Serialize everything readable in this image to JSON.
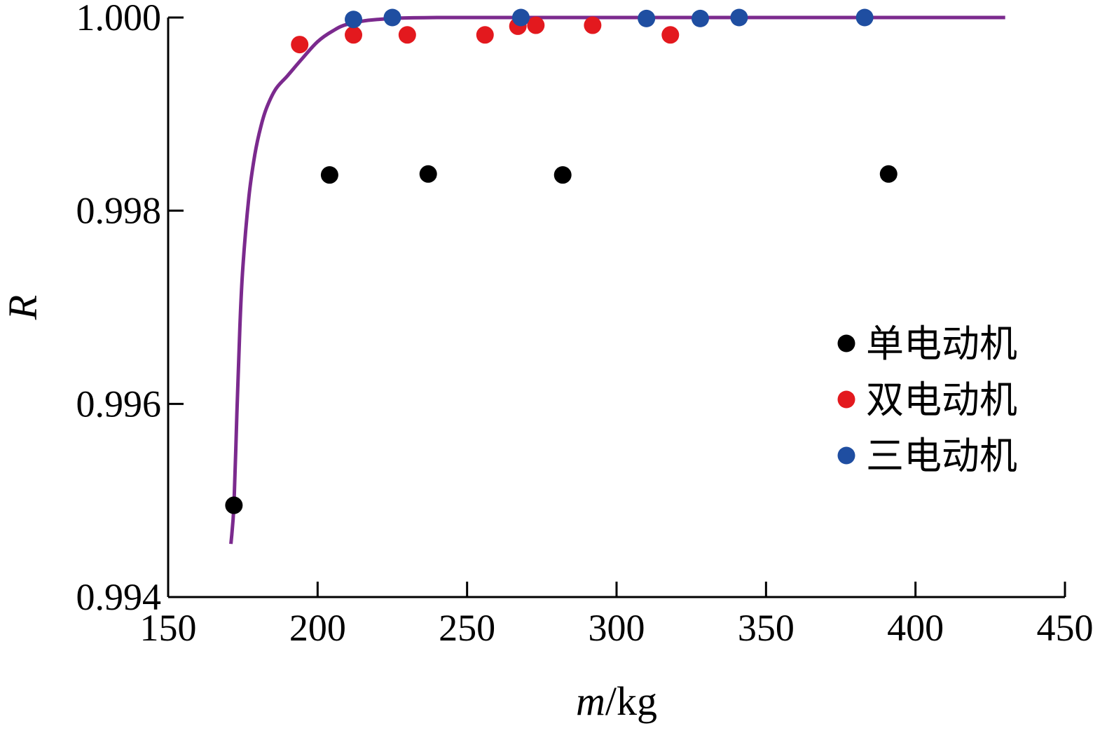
{
  "chart_data": {
    "type": "scatter",
    "title": "",
    "xlabel_var": "m",
    "xlabel_unit": "/kg",
    "ylabel": "R",
    "xlim": [
      150,
      450
    ],
    "ylim": [
      0.994,
      1.0
    ],
    "xticks": [
      150,
      200,
      250,
      300,
      350,
      400,
      450
    ],
    "yticks": [
      {
        "value": 0.994,
        "label": "0.994"
      },
      {
        "value": 0.996,
        "label": "0.996"
      },
      {
        "value": 0.998,
        "label": "0.998"
      },
      {
        "value": 1.0,
        "label": "1.000"
      }
    ],
    "legend_position": "right",
    "series": [
      {
        "name": "单电动机",
        "color": "#000000",
        "points": [
          [
            172,
            0.99495
          ],
          [
            204,
            0.99837
          ],
          [
            237,
            0.99838
          ],
          [
            282,
            0.99837
          ],
          [
            391,
            0.99838
          ]
        ]
      },
      {
        "name": "双电动机",
        "color": "#e3191e",
        "points": [
          [
            194,
            0.99972
          ],
          [
            212,
            0.99982
          ],
          [
            230,
            0.99982
          ],
          [
            256,
            0.99982
          ],
          [
            267,
            0.99991
          ],
          [
            273,
            0.99992
          ],
          [
            292,
            0.99992
          ],
          [
            318,
            0.99982
          ]
        ]
      },
      {
        "name": "三电动机",
        "color": "#1f4ea1",
        "points": [
          [
            212,
            0.99998
          ],
          [
            225,
            1.0
          ],
          [
            268,
            1.0
          ],
          [
            310,
            0.99999
          ],
          [
            328,
            0.99999
          ],
          [
            341,
            1.0
          ],
          [
            383,
            1.0
          ]
        ]
      }
    ],
    "fit_curve": {
      "color": "#7b2a8e",
      "points": [
        [
          171,
          0.99455
        ],
        [
          172,
          0.99495
        ],
        [
          173,
          0.9959
        ],
        [
          174,
          0.9968
        ],
        [
          175,
          0.99742
        ],
        [
          177,
          0.99814
        ],
        [
          179,
          0.99858
        ],
        [
          181,
          0.99887
        ],
        [
          183,
          0.99907
        ],
        [
          186,
          0.99926
        ],
        [
          190,
          0.9994
        ],
        [
          195,
          0.99958
        ],
        [
          200,
          0.99975
        ],
        [
          205,
          0.99986
        ],
        [
          210,
          0.99993
        ],
        [
          220,
          0.99998
        ],
        [
          240,
          1.0
        ],
        [
          300,
          1.0
        ],
        [
          380,
          1.0
        ],
        [
          430,
          1.0
        ]
      ]
    }
  }
}
